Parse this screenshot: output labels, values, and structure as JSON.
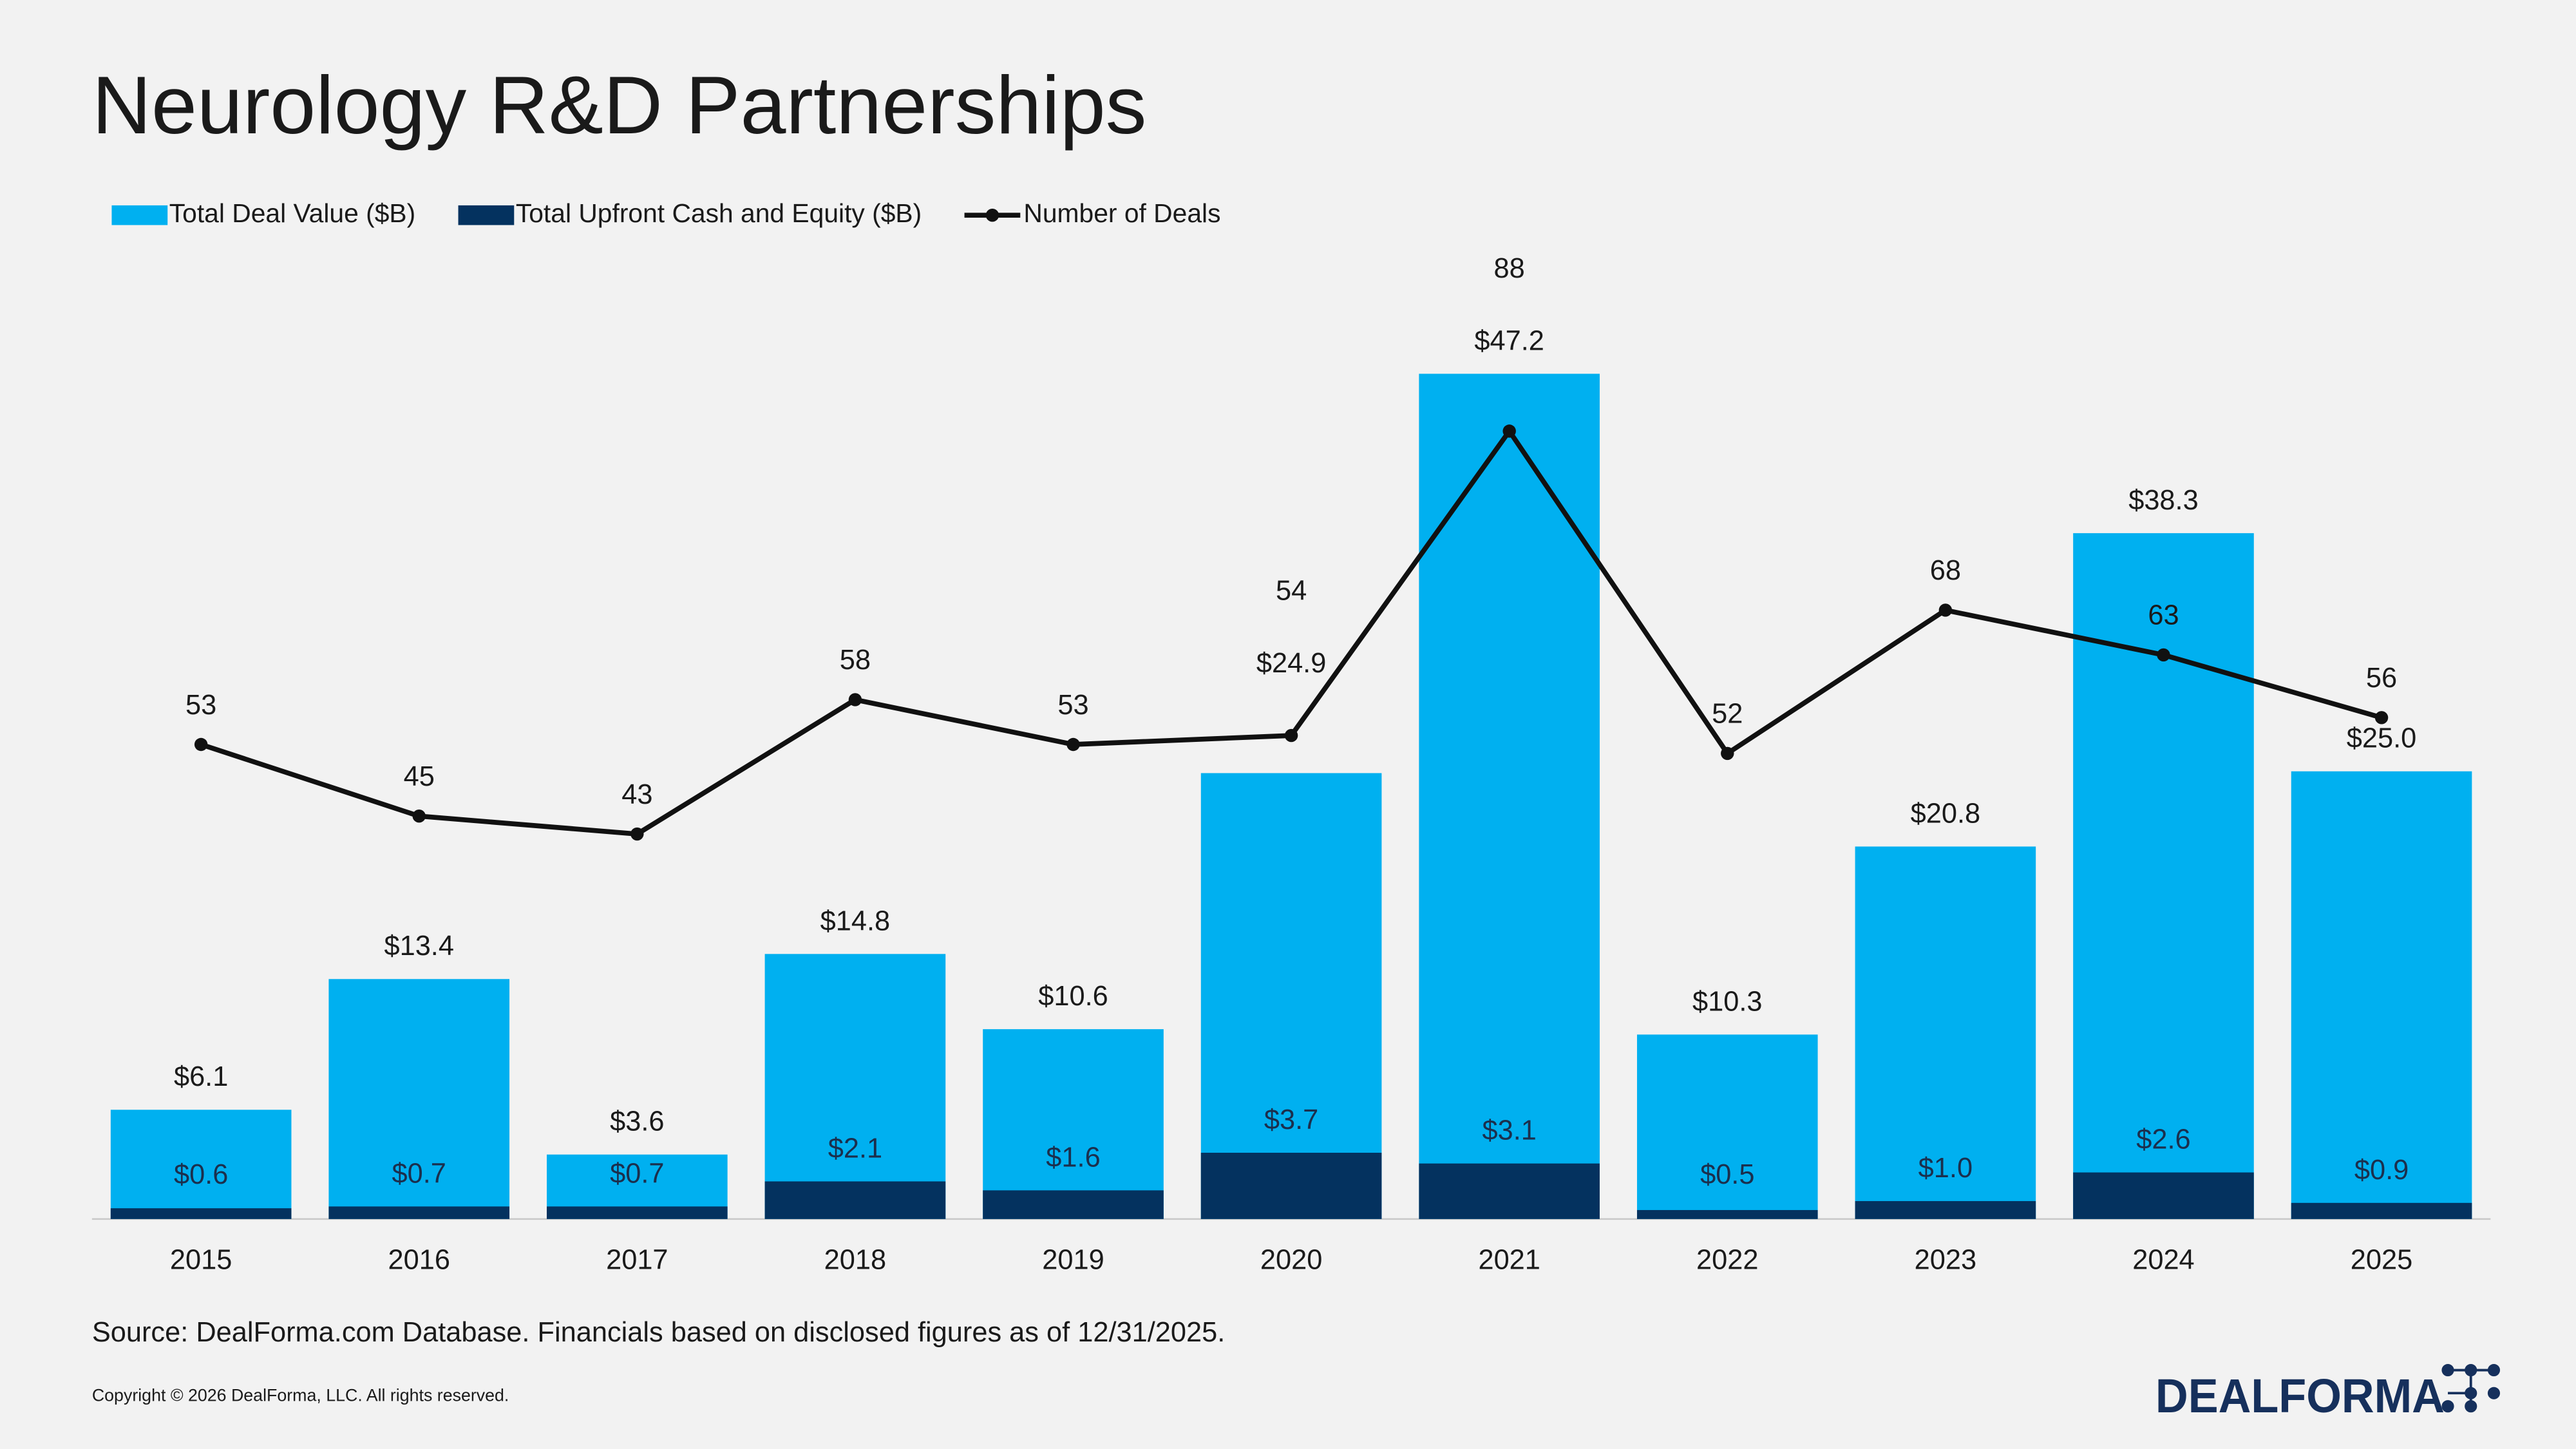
{
  "chart_data": {
    "type": "bar-line",
    "title": "Neurology R&D Partnerships",
    "categories": [
      "2015",
      "2016",
      "2017",
      "2018",
      "2019",
      "2020",
      "2021",
      "2022",
      "2023",
      "2024",
      "2025"
    ],
    "series": [
      {
        "name": "Total Deal Value ($B)",
        "color": "#00b0f0",
        "type": "bar",
        "values": [
          6.1,
          13.4,
          3.6,
          14.8,
          10.6,
          24.9,
          47.2,
          10.3,
          20.8,
          38.3,
          25.0
        ],
        "value_labels": [
          "$6.1",
          "$13.4",
          "$3.6",
          "$14.8",
          "$10.6",
          "$24.9",
          "$47.2",
          "$10.3",
          "$20.8",
          "$38.3",
          "$25.0"
        ]
      },
      {
        "name": "Total Upfront Cash and Equity ($B)",
        "color": "#04325f",
        "type": "bar",
        "values": [
          0.6,
          0.7,
          0.7,
          2.1,
          1.6,
          3.7,
          3.1,
          0.5,
          1.0,
          2.6,
          0.9
        ],
        "value_labels": [
          "$0.6",
          "$0.7",
          "$0.7",
          "$2.1",
          "$1.6",
          "$3.7",
          "$3.1",
          "$0.5",
          "$1.0",
          "$2.6",
          "$0.9"
        ]
      },
      {
        "name": "Number of Deals",
        "color": "#111111",
        "type": "line",
        "axis": "y2",
        "values": [
          53,
          45,
          43,
          58,
          53,
          54,
          88,
          52,
          68,
          63,
          56
        ]
      }
    ],
    "ylim": [
      0,
      50
    ],
    "y2lim": [
      0,
      100
    ]
  },
  "source": "Source: DealForma.com Database. Financials based on disclosed figures as of 12/31/2025.",
  "copyright": "Copyright © 2026 DealForma, LLC. All rights reserved.",
  "logo": "DEALFORMA"
}
